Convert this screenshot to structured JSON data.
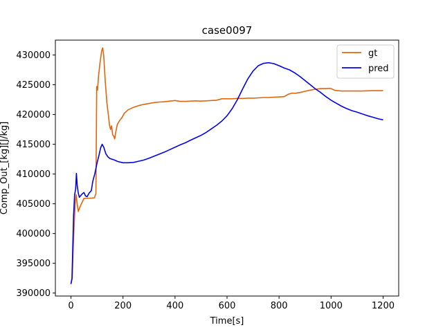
{
  "chart_data": {
    "type": "line",
    "title": "case0097",
    "xlabel": "Time[s]",
    "ylabel": "Comp_Out_[kg][J/kg]",
    "xlim": [
      -60,
      1260
    ],
    "ylim": [
      389500,
      432500
    ],
    "xticks": [
      0,
      200,
      400,
      600,
      800,
      1000,
      1200
    ],
    "yticks": [
      390000,
      395000,
      400000,
      405000,
      410000,
      415000,
      420000,
      425000,
      430000
    ],
    "grid": false,
    "legend": {
      "position": "top-right"
    },
    "series": [
      {
        "name": "gt",
        "color": "#e0650b",
        "points": [
          [
            0,
            391600
          ],
          [
            5,
            392500
          ],
          [
            8,
            397000
          ],
          [
            12,
            401500
          ],
          [
            16,
            405000
          ],
          [
            20,
            406500
          ],
          [
            24,
            404900
          ],
          [
            28,
            403700
          ],
          [
            32,
            404200
          ],
          [
            40,
            405000
          ],
          [
            50,
            405900
          ],
          [
            60,
            405950
          ],
          [
            70,
            405950
          ],
          [
            80,
            405960
          ],
          [
            90,
            406000
          ],
          [
            96,
            406700
          ],
          [
            99,
            424700
          ],
          [
            102,
            424100
          ],
          [
            106,
            426500
          ],
          [
            112,
            428800
          ],
          [
            118,
            430700
          ],
          [
            122,
            431200
          ],
          [
            126,
            429800
          ],
          [
            132,
            425500
          ],
          [
            138,
            422000
          ],
          [
            144,
            419800
          ],
          [
            148,
            418200
          ],
          [
            152,
            417500
          ],
          [
            156,
            418100
          ],
          [
            160,
            416600
          ],
          [
            164,
            416400
          ],
          [
            168,
            415900
          ],
          [
            172,
            417000
          ],
          [
            178,
            418300
          ],
          [
            186,
            418900
          ],
          [
            196,
            419500
          ],
          [
            205,
            420200
          ],
          [
            220,
            420800
          ],
          [
            240,
            421200
          ],
          [
            260,
            421500
          ],
          [
            280,
            421700
          ],
          [
            300,
            421850
          ],
          [
            320,
            422000
          ],
          [
            340,
            422100
          ],
          [
            360,
            422150
          ],
          [
            380,
            422250
          ],
          [
            400,
            422350
          ],
          [
            420,
            422200
          ],
          [
            440,
            422200
          ],
          [
            460,
            422250
          ],
          [
            480,
            422300
          ],
          [
            500,
            422250
          ],
          [
            520,
            422300
          ],
          [
            540,
            422350
          ],
          [
            560,
            422400
          ],
          [
            580,
            422650
          ],
          [
            600,
            422650
          ],
          [
            620,
            422650
          ],
          [
            640,
            422700
          ],
          [
            660,
            422700
          ],
          [
            680,
            422750
          ],
          [
            700,
            422750
          ],
          [
            720,
            422800
          ],
          [
            740,
            422850
          ],
          [
            760,
            422850
          ],
          [
            780,
            422900
          ],
          [
            800,
            422950
          ],
          [
            820,
            423000
          ],
          [
            835,
            423400
          ],
          [
            850,
            423600
          ],
          [
            860,
            423550
          ],
          [
            880,
            423700
          ],
          [
            900,
            423900
          ],
          [
            920,
            424100
          ],
          [
            940,
            424250
          ],
          [
            960,
            424350
          ],
          [
            980,
            424350
          ],
          [
            995,
            424400
          ],
          [
            1000,
            424350
          ],
          [
            1015,
            424050
          ],
          [
            1040,
            423950
          ],
          [
            1080,
            423950
          ],
          [
            1120,
            423950
          ],
          [
            1160,
            424000
          ],
          [
            1200,
            424000
          ]
        ]
      },
      {
        "name": "pred",
        "color": "#0000ee",
        "points": [
          [
            0,
            391500
          ],
          [
            4,
            392500
          ],
          [
            7,
            398000
          ],
          [
            10,
            403000
          ],
          [
            14,
            406500
          ],
          [
            18,
            407500
          ],
          [
            21,
            410100
          ],
          [
            24,
            408000
          ],
          [
            28,
            406800
          ],
          [
            32,
            406100
          ],
          [
            38,
            406400
          ],
          [
            44,
            406700
          ],
          [
            50,
            406900
          ],
          [
            56,
            406300
          ],
          [
            62,
            406200
          ],
          [
            70,
            406800
          ],
          [
            78,
            407200
          ],
          [
            84,
            408800
          ],
          [
            92,
            410100
          ],
          [
            100,
            411800
          ],
          [
            108,
            413200
          ],
          [
            114,
            414400
          ],
          [
            120,
            415000
          ],
          [
            126,
            414500
          ],
          [
            134,
            413400
          ],
          [
            142,
            412900
          ],
          [
            150,
            412600
          ],
          [
            165,
            412400
          ],
          [
            180,
            412100
          ],
          [
            200,
            411900
          ],
          [
            220,
            411900
          ],
          [
            240,
            411950
          ],
          [
            260,
            412150
          ],
          [
            280,
            412350
          ],
          [
            300,
            412650
          ],
          [
            320,
            413000
          ],
          [
            340,
            413350
          ],
          [
            360,
            413700
          ],
          [
            380,
            414100
          ],
          [
            400,
            414500
          ],
          [
            420,
            414900
          ],
          [
            440,
            415250
          ],
          [
            460,
            415700
          ],
          [
            480,
            416100
          ],
          [
            500,
            416500
          ],
          [
            520,
            417000
          ],
          [
            540,
            417600
          ],
          [
            560,
            418200
          ],
          [
            580,
            418900
          ],
          [
            600,
            419800
          ],
          [
            620,
            421000
          ],
          [
            640,
            422500
          ],
          [
            660,
            424300
          ],
          [
            680,
            426000
          ],
          [
            700,
            427300
          ],
          [
            720,
            428200
          ],
          [
            740,
            428600
          ],
          [
            760,
            428700
          ],
          [
            780,
            428550
          ],
          [
            800,
            428200
          ],
          [
            820,
            427800
          ],
          [
            840,
            427500
          ],
          [
            860,
            427000
          ],
          [
            880,
            426400
          ],
          [
            900,
            425700
          ],
          [
            920,
            425000
          ],
          [
            940,
            424300
          ],
          [
            960,
            423700
          ],
          [
            980,
            423000
          ],
          [
            1000,
            422400
          ],
          [
            1020,
            421900
          ],
          [
            1040,
            421400
          ],
          [
            1060,
            421000
          ],
          [
            1080,
            420650
          ],
          [
            1100,
            420400
          ],
          [
            1120,
            420100
          ],
          [
            1140,
            419800
          ],
          [
            1160,
            419550
          ],
          [
            1180,
            419300
          ],
          [
            1200,
            419100
          ]
        ]
      }
    ]
  }
}
